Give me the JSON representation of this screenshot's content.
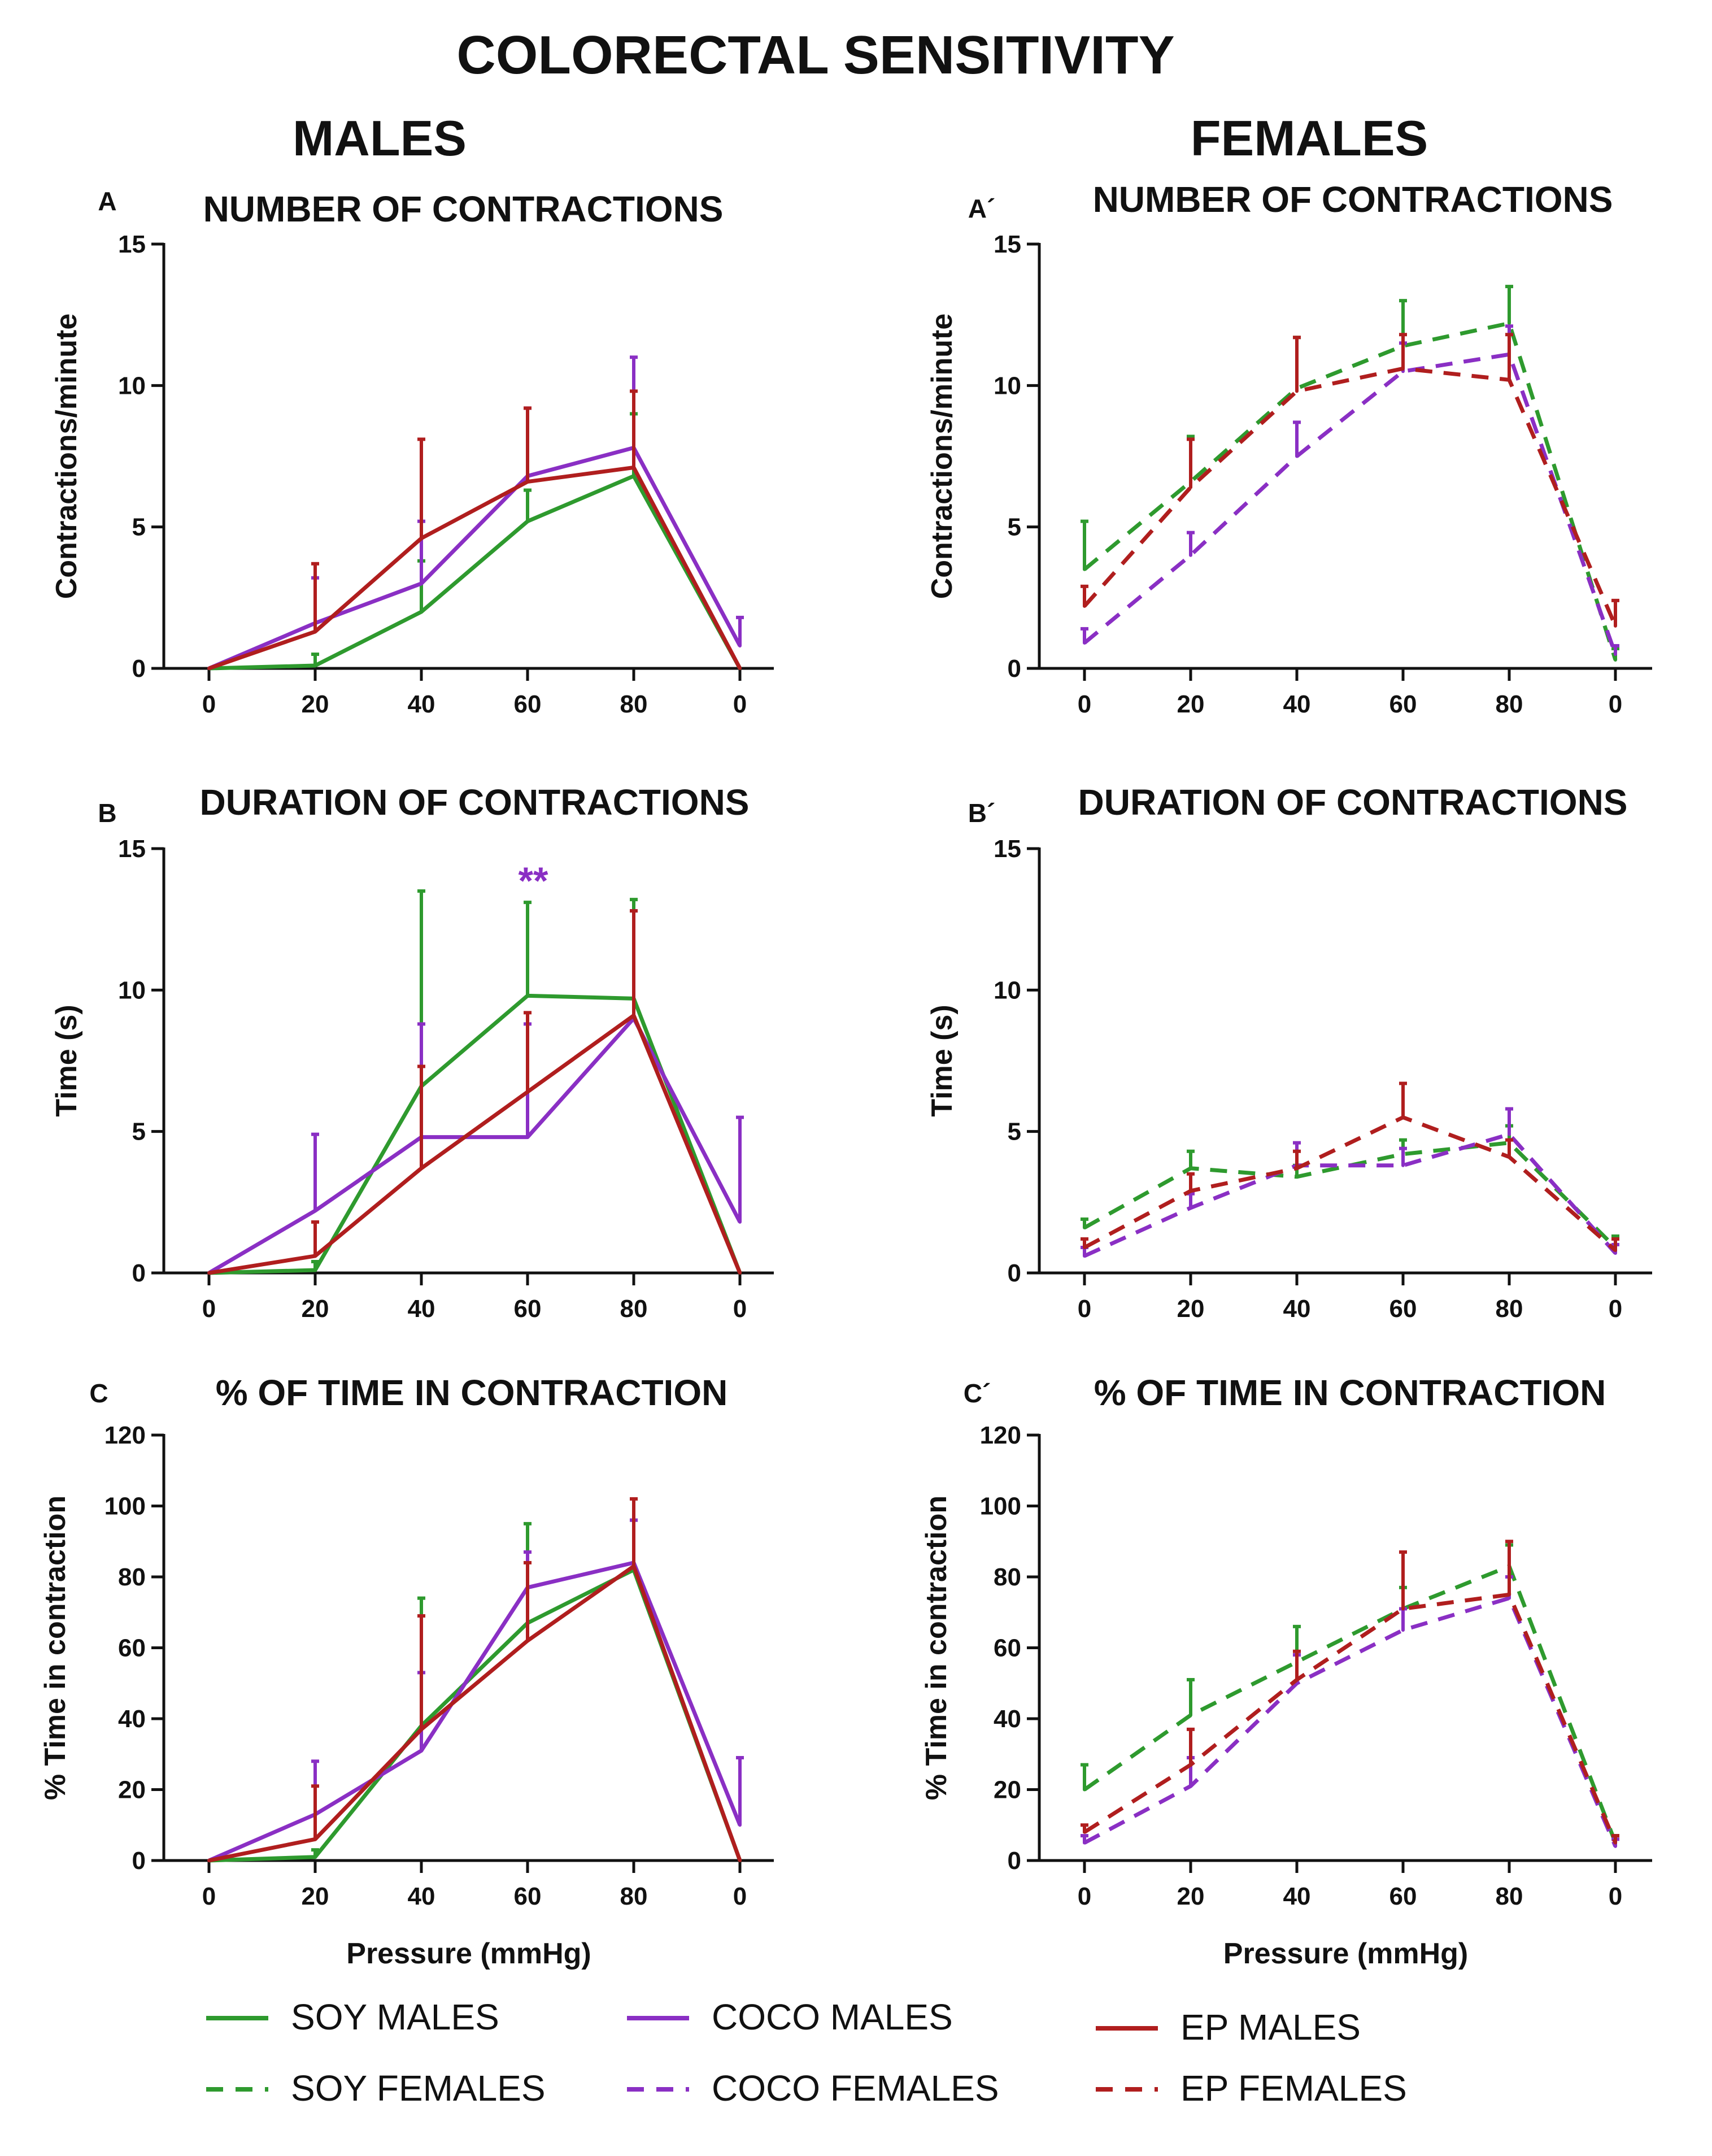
{
  "title": "COLORECTAL SENSITIVITY",
  "column_headers": [
    "MALES",
    "FEMALES"
  ],
  "colors": {
    "soy": "#2e9a2e",
    "coco": "#8a2fc4",
    "ep": "#b01e1e"
  },
  "chart_data": [
    {
      "id": "A",
      "letter": "A",
      "type": "line",
      "title": "NUMBER OF CONTRACTIONS",
      "xlabel": "",
      "ylabel": "Contractions/minute",
      "ylim": [
        0,
        15
      ],
      "yticks": [
        "0",
        "5",
        "10",
        "15"
      ],
      "categories": [
        "0",
        "20",
        "40",
        "60",
        "80",
        "0"
      ],
      "series": [
        {
          "name": "SOY MALES",
          "color_key": "soy",
          "dashed": false,
          "values": [
            0,
            0.1,
            2,
            5.2,
            6.8,
            0
          ],
          "errors": [
            0,
            0.4,
            1.8,
            1.1,
            2.2,
            0
          ]
        },
        {
          "name": "COCO MALES",
          "color_key": "coco",
          "dashed": false,
          "values": [
            0,
            1.6,
            3,
            6.8,
            7.8,
            0.8
          ],
          "errors": [
            0,
            1.6,
            2.2,
            2.4,
            3.2,
            1.0
          ]
        },
        {
          "name": "EP MALES",
          "color_key": "ep",
          "dashed": false,
          "values": [
            0,
            1.3,
            4.6,
            6.6,
            7.1,
            0
          ],
          "errors": [
            0,
            2.4,
            3.5,
            2.6,
            2.7,
            0
          ]
        }
      ],
      "annotation": ""
    },
    {
      "id": "A2",
      "letter": "A´",
      "type": "line",
      "title": "NUMBER OF CONTRACTIONS",
      "xlabel": "",
      "ylabel": "Contractions/minute",
      "ylim": [
        0,
        15
      ],
      "yticks": [
        "0",
        "5",
        "10",
        "15"
      ],
      "categories": [
        "0",
        "20",
        "40",
        "60",
        "80",
        "0"
      ],
      "series": [
        {
          "name": "SOY FEMALES",
          "color_key": "soy",
          "dashed": true,
          "values": [
            3.5,
            6.6,
            9.9,
            11.4,
            12.2,
            0.3
          ],
          "errors": [
            1.7,
            1.6,
            1.8,
            1.6,
            1.3,
            0.4
          ]
        },
        {
          "name": "COCO FEMALES",
          "color_key": "coco",
          "dashed": true,
          "values": [
            0.9,
            4.0,
            7.5,
            10.5,
            11.1,
            0.5
          ],
          "errors": [
            0.5,
            0.8,
            1.2,
            1.0,
            1.0,
            0.3
          ]
        },
        {
          "name": "EP FEMALES",
          "color_key": "ep",
          "dashed": true,
          "values": [
            2.2,
            6.4,
            9.8,
            10.6,
            10.2,
            1.5
          ],
          "errors": [
            0.7,
            1.7,
            1.9,
            1.2,
            1.6,
            0.9
          ]
        }
      ],
      "annotation": ""
    },
    {
      "id": "B",
      "letter": "B",
      "type": "line",
      "title": "DURATION OF CONTRACTIONS",
      "xlabel": "",
      "ylabel": "Time  (s)",
      "ylim": [
        0,
        15
      ],
      "yticks": [
        "0",
        "5",
        "10",
        "15"
      ],
      "categories": [
        "0",
        "20",
        "40",
        "60",
        "80",
        "0"
      ],
      "series": [
        {
          "name": "SOY MALES",
          "color_key": "soy",
          "dashed": false,
          "values": [
            0,
            0.1,
            6.6,
            9.8,
            9.7,
            0
          ],
          "errors": [
            0,
            0.3,
            6.9,
            3.3,
            3.5,
            0
          ]
        },
        {
          "name": "COCO MALES",
          "color_key": "coco",
          "dashed": false,
          "values": [
            0,
            2.2,
            4.8,
            4.8,
            9.0,
            1.8
          ],
          "errors": [
            0,
            2.7,
            4.0,
            4.0,
            3.8,
            3.7
          ]
        },
        {
          "name": "EP MALES",
          "color_key": "ep",
          "dashed": false,
          "values": [
            0,
            0.6,
            3.7,
            6.4,
            9.1,
            0
          ],
          "errors": [
            0,
            1.2,
            3.6,
            2.8,
            3.7,
            0
          ]
        }
      ],
      "annotation": "**"
    },
    {
      "id": "B2",
      "letter": "B´",
      "type": "line",
      "title": "DURATION OF CONTRACTIONS",
      "xlabel": "",
      "ylabel": "Time  (s)",
      "ylim": [
        0,
        15
      ],
      "yticks": [
        "0",
        "5",
        "10",
        "15"
      ],
      "categories": [
        "0",
        "20",
        "40",
        "60",
        "80",
        "0"
      ],
      "series": [
        {
          "name": "SOY FEMALES",
          "color_key": "soy",
          "dashed": true,
          "values": [
            1.6,
            3.7,
            3.4,
            4.2,
            4.6,
            0.9
          ],
          "errors": [
            0.3,
            0.6,
            0.4,
            0.5,
            0.6,
            0.4
          ]
        },
        {
          "name": "COCO FEMALES",
          "color_key": "coco",
          "dashed": true,
          "values": [
            0.6,
            2.3,
            3.8,
            3.8,
            4.9,
            0.7
          ],
          "errors": [
            0.3,
            0.5,
            0.8,
            0.6,
            0.9,
            0.3
          ]
        },
        {
          "name": "EP FEMALES",
          "color_key": "ep",
          "dashed": true,
          "values": [
            0.9,
            2.9,
            3.7,
            5.5,
            4.1,
            0.8
          ],
          "errors": [
            0.3,
            0.6,
            0.6,
            1.2,
            0.6,
            0.4
          ]
        }
      ],
      "annotation": ""
    },
    {
      "id": "C",
      "letter": "C",
      "type": "line",
      "title": "% OF TIME IN CONTRACTION",
      "xlabel": "Pressure (mmHg)",
      "ylabel": "% Time in contraction",
      "ylim": [
        0,
        120
      ],
      "yticks": [
        "0",
        "20",
        "40",
        "60",
        "80",
        "100",
        "120"
      ],
      "categories": [
        "0",
        "20",
        "40",
        "60",
        "80",
        "0"
      ],
      "series": [
        {
          "name": "SOY MALES",
          "color_key": "soy",
          "dashed": false,
          "values": [
            0,
            1,
            38,
            67,
            82,
            0
          ],
          "errors": [
            0,
            2,
            36,
            28,
            14,
            0
          ]
        },
        {
          "name": "COCO MALES",
          "color_key": "coco",
          "dashed": false,
          "values": [
            0,
            13,
            31,
            77,
            84,
            10
          ],
          "errors": [
            0,
            15,
            22,
            10,
            12,
            19
          ]
        },
        {
          "name": "EP MALES",
          "color_key": "ep",
          "dashed": false,
          "values": [
            0,
            6,
            37,
            62,
            83,
            0
          ],
          "errors": [
            0,
            15,
            32,
            22,
            19,
            0
          ]
        }
      ],
      "annotation": ""
    },
    {
      "id": "C2",
      "letter": "C´",
      "type": "line",
      "title": "% OF TIME IN CONTRACTION",
      "xlabel": "Pressure (mmHg)",
      "ylabel": "% Time in contraction",
      "ylim": [
        0,
        120
      ],
      "yticks": [
        "0",
        "20",
        "40",
        "60",
        "80",
        "100",
        "120"
      ],
      "categories": [
        "0",
        "20",
        "40",
        "60",
        "80",
        "0"
      ],
      "series": [
        {
          "name": "SOY FEMALES",
          "color_key": "soy",
          "dashed": true,
          "values": [
            20,
            41,
            56,
            71,
            83,
            5
          ],
          "errors": [
            7,
            10,
            10,
            6,
            6,
            2
          ]
        },
        {
          "name": "COCO FEMALES",
          "color_key": "coco",
          "dashed": true,
          "values": [
            5,
            21,
            50,
            65,
            74,
            4
          ],
          "errors": [
            2,
            8,
            8,
            6,
            6,
            2
          ]
        },
        {
          "name": "EP FEMALES",
          "color_key": "ep",
          "dashed": true,
          "values": [
            8,
            27,
            51,
            71,
            75,
            5
          ],
          "errors": [
            2,
            10,
            8,
            16,
            15,
            2
          ]
        }
      ],
      "annotation": ""
    }
  ],
  "legend": [
    {
      "label": "SOY MALES",
      "color_key": "soy",
      "dashed": false
    },
    {
      "label": "COCO MALES",
      "color_key": "coco",
      "dashed": false
    },
    {
      "label": "EP MALES",
      "color_key": "ep",
      "dashed": false
    },
    {
      "label": "SOY FEMALES",
      "color_key": "soy",
      "dashed": true
    },
    {
      "label": "COCO FEMALES",
      "color_key": "coco",
      "dashed": true
    },
    {
      "label": "EP FEMALES",
      "color_key": "ep",
      "dashed": true
    }
  ]
}
